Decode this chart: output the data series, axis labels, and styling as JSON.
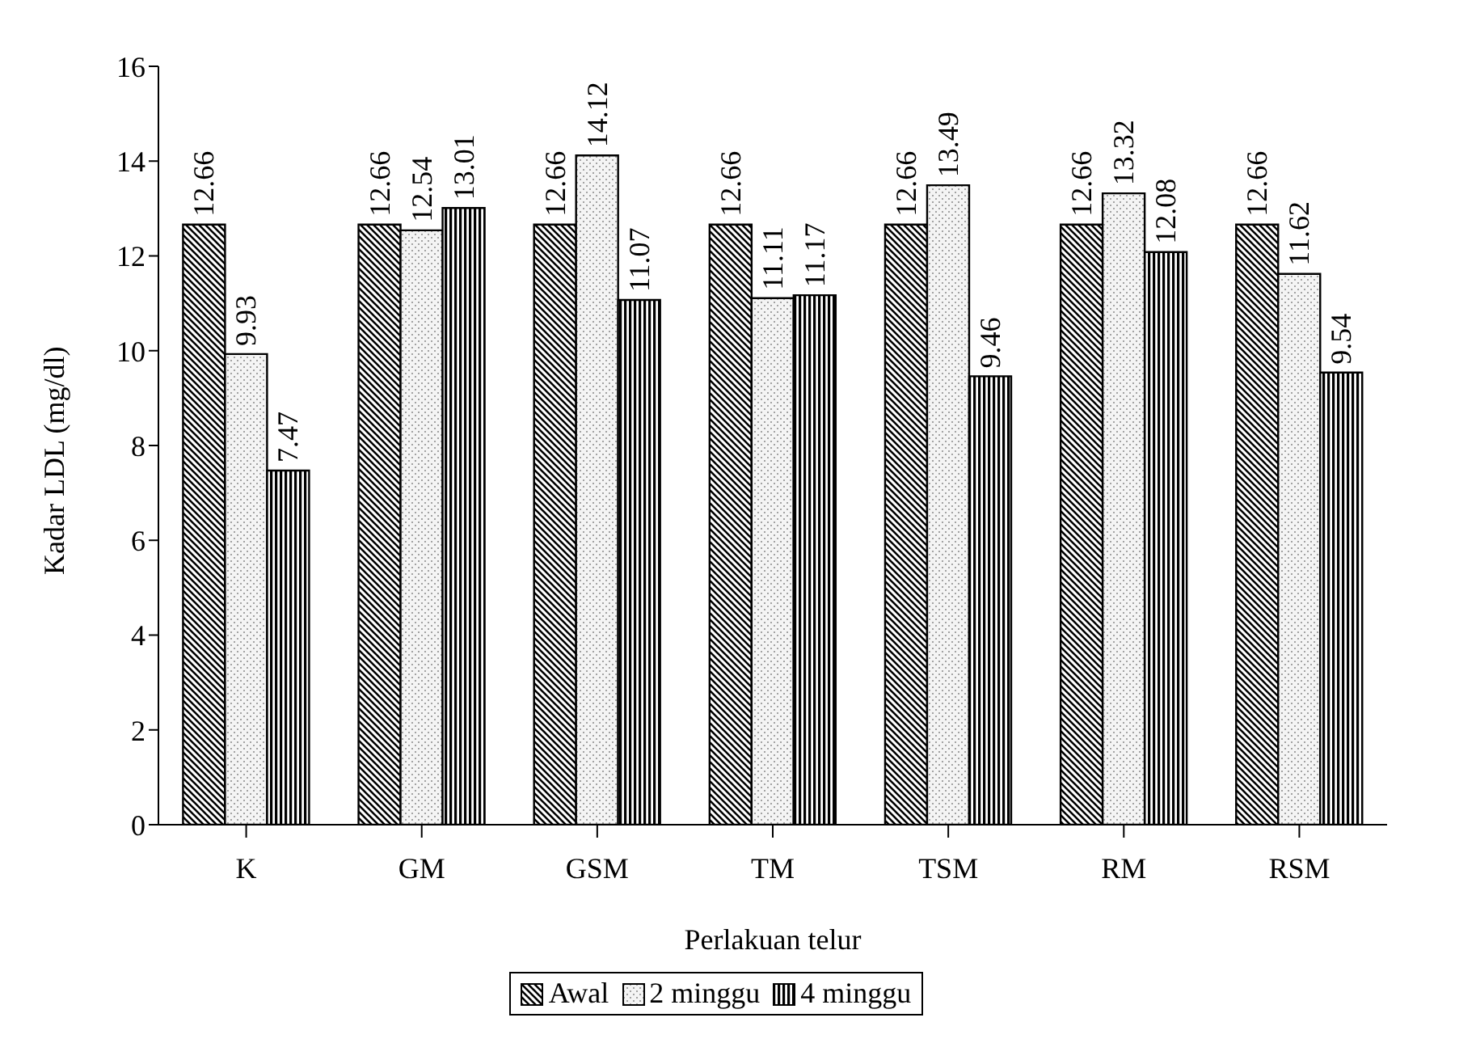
{
  "chart_data": {
    "type": "bar",
    "xlabel": "Perlakuan telur",
    "ylabel": "Kadar LDL (mg/dl)",
    "categories": [
      "K",
      "GM",
      "GSM",
      "TM",
      "TSM",
      "RM",
      "RSM"
    ],
    "series": [
      {
        "name": "Awal",
        "color": "#000000",
        "values": [
          12.66,
          12.66,
          12.66,
          12.66,
          12.66,
          12.66,
          12.66
        ]
      },
      {
        "name": "2 minggu",
        "color": "#000000",
        "values": [
          9.93,
          12.54,
          14.12,
          11.11,
          13.49,
          13.32,
          11.62
        ]
      },
      {
        "name": "4 minggu",
        "color": "#000000",
        "values": [
          7.47,
          13.01,
          11.07,
          11.17,
          9.46,
          12.08,
          9.54
        ]
      }
    ],
    "ylim": [
      0,
      16
    ],
    "yticks": [
      0,
      2,
      4,
      6,
      8,
      10,
      12,
      14,
      16
    ],
    "grid": false,
    "legend": "bottom",
    "data_labels": true
  }
}
